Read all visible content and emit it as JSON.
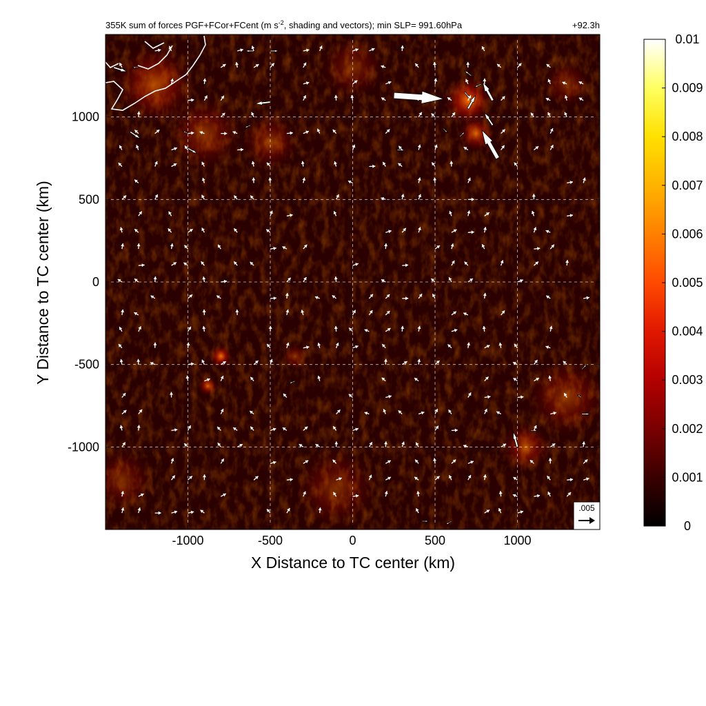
{
  "chart_data": {
    "type": "heatmap",
    "title": "355K sum of forces PGF+FCor+FCent (m s-2, shading and vectors); min SLP= 991.60hPa",
    "title_main": "355K sum of forces PGF+FCor+FCent (m s",
    "title_sup": "-2",
    "title_rest": ", shading and vectors); min SLP= 991.60hPa",
    "time_label": "+92.3h",
    "xlabel": "X Distance to TC center (km)",
    "ylabel": "Y Distance to TC center (km)",
    "xlim": [
      -1500,
      1500
    ],
    "ylim": [
      -1500,
      1500
    ],
    "xticks": [
      -1000,
      -500,
      0,
      500,
      1000
    ],
    "yticks": [
      -1000,
      -500,
      0,
      500,
      1000
    ],
    "grid": true,
    "colorbar": {
      "min": 0,
      "max": 0.01,
      "ticks": [
        "0",
        "0.001",
        "0.002",
        "0.003",
        "0.004",
        "0.005",
        "0.006",
        "0.007",
        "0.008",
        "0.009",
        "0.01"
      ],
      "colors": [
        "#000000",
        "#3a0000",
        "#7a0000",
        "#b30000",
        "#e01800",
        "#ff4a00",
        "#ff8000",
        "#ffb300",
        "#ffe000",
        "#ffff60",
        "#ffffff"
      ]
    },
    "reference_vector": {
      "label": ".005",
      "magnitude": 0.005
    },
    "hotspots": [
      {
        "x": 700,
        "y": 1100,
        "r": 150,
        "v": 0.007
      },
      {
        "x": 750,
        "y": 900,
        "r": 110,
        "v": 0.005
      },
      {
        "x": -1200,
        "y": 1200,
        "r": 250,
        "v": 0.004
      },
      {
        "x": -900,
        "y": 900,
        "r": 230,
        "v": 0.003
      },
      {
        "x": -500,
        "y": 850,
        "r": 180,
        "v": 0.003
      },
      {
        "x": 0,
        "y": 1300,
        "r": 200,
        "v": 0.0025
      },
      {
        "x": 1300,
        "y": 1200,
        "r": 150,
        "v": 0.0025
      },
      {
        "x": 1300,
        "y": -700,
        "r": 250,
        "v": 0.003
      },
      {
        "x": 1050,
        "y": -1000,
        "r": 150,
        "v": 0.004
      },
      {
        "x": -100,
        "y": -1250,
        "r": 260,
        "v": 0.0025
      },
      {
        "x": -1400,
        "y": -1200,
        "r": 200,
        "v": 0.0025
      },
      {
        "x": -800,
        "y": -450,
        "r": 70,
        "v": 0.006
      },
      {
        "x": -880,
        "y": -630,
        "r": 60,
        "v": 0.005
      },
      {
        "x": -350,
        "y": -450,
        "r": 80,
        "v": 0.003
      }
    ],
    "vectors": [
      {
        "x": -1450,
        "y": 1300,
        "u": 1.6,
        "v": -0.5
      },
      {
        "x": -1350,
        "y": 910,
        "u": 1.2,
        "v": -0.8
      },
      {
        "x": -1000,
        "y": 810,
        "u": 1.1,
        "v": -0.6
      },
      {
        "x": -500,
        "y": 1090,
        "u": -1.8,
        "v": -0.2
      },
      {
        "x": -600,
        "y": 1400,
        "u": -1.0,
        "v": 0.0
      },
      {
        "x": -500,
        "y": 1400,
        "u": 1.0,
        "v": 0.0
      },
      {
        "x": 250,
        "y": 1130,
        "u": 6.0,
        "v": -0.4
      },
      {
        "x": 850,
        "y": 1100,
        "u": -1.2,
        "v": 2.2
      },
      {
        "x": 880,
        "y": 750,
        "u": -1.9,
        "v": 3.4
      },
      {
        "x": 850,
        "y": 950,
        "u": -1.0,
        "v": 1.5
      },
      {
        "x": 700,
        "y": 1050,
        "u": 0.9,
        "v": 1.6
      },
      {
        "x": 720,
        "y": 1250,
        "u": -0.8,
        "v": 0.6
      },
      {
        "x": 680,
        "y": 1150,
        "u": 0.7,
        "v": -0.8
      },
      {
        "x": 780,
        "y": 1200,
        "u": -0.8,
        "v": -0.4
      },
      {
        "x": 650,
        "y": 880,
        "u": 0.6,
        "v": 0.6
      },
      {
        "x": 550,
        "y": 930,
        "u": 0.5,
        "v": -0.5
      },
      {
        "x": 270,
        "y": 800,
        "u": 0.9,
        "v": 0.0
      },
      {
        "x": -1000,
        "y": 900,
        "u": -0.6,
        "v": 0.3
      },
      {
        "x": -620,
        "y": 950,
        "u": -0.7,
        "v": -0.3
      },
      {
        "x": -1300,
        "y": 1300,
        "u": -0.7,
        "v": 0.0
      },
      {
        "x": 1000,
        "y": -1000,
        "u": -0.5,
        "v": 1.8
      },
      {
        "x": 1080,
        "y": -900,
        "u": 0.8,
        "v": 0.0
      },
      {
        "x": 1390,
        "y": -800,
        "u": 1.0,
        "v": 0.0
      },
      {
        "x": 1390,
        "y": -530,
        "u": 0.6,
        "v": 0.6
      },
      {
        "x": 1390,
        "y": -700,
        "u": -0.5,
        "v": 0.3
      },
      {
        "x": -350,
        "y": -600,
        "u": -0.7,
        "v": -0.3
      },
      {
        "x": 420,
        "y": -1450,
        "u": 0.8,
        "v": 0.0
      },
      {
        "x": 600,
        "y": -1450,
        "u": -0.7,
        "v": -0.4
      }
    ]
  }
}
